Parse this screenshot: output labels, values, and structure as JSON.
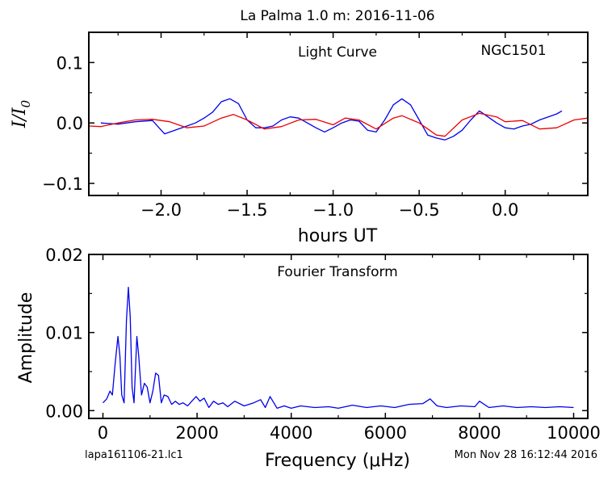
{
  "figure": {
    "title": "La Palma 1.0 m:  2016-11-06",
    "footer_left": "lapa161106-21.lc1",
    "footer_right": "Mon Nov 28 16:12:44 2016"
  },
  "colors": {
    "data": "#0000ee",
    "model": "#ee0000",
    "axes": "#000000"
  },
  "chart_data": [
    {
      "type": "line",
      "annotation": "Light Curve",
      "target": "NGC1501",
      "xlabel": "hours UT",
      "ylabel_main": "I/I",
      "ylabel_sub": "0",
      "xlim": [
        -2.42,
        0.48
      ],
      "ylim": [
        -0.12,
        0.15
      ],
      "xticks": [
        "−2.0",
        "−1.5",
        "−1.0",
        "−0.5",
        "0.0"
      ],
      "xtick_values": [
        -2.0,
        -1.5,
        -1.0,
        -0.5,
        0.0
      ],
      "yticks": [
        "0.1",
        "0.0",
        "−0.1"
      ],
      "ytick_values": [
        0.1,
        0.0,
        -0.1
      ],
      "series": [
        {
          "role": "data",
          "x": [
            -2.35,
            -2.25,
            -2.15,
            -2.05,
            -1.98,
            -1.9,
            -1.85,
            -1.8,
            -1.75,
            -1.7,
            -1.65,
            -1.6,
            -1.55,
            -1.5,
            -1.45,
            -1.4,
            -1.35,
            -1.3,
            -1.25,
            -1.2,
            -1.15,
            -1.1,
            -1.05,
            -1.0,
            -0.95,
            -0.9,
            -0.85,
            -0.8,
            -0.75,
            -0.7,
            -0.65,
            -0.6,
            -0.55,
            -0.5,
            -0.45,
            -0.4,
            -0.35,
            -0.3,
            -0.25,
            -0.2,
            -0.15,
            -0.1,
            -0.05,
            0.0,
            0.05,
            0.1,
            0.15,
            0.2,
            0.25,
            0.3,
            0.33
          ],
          "y": [
            0.0,
            -0.002,
            0.002,
            0.004,
            -0.018,
            -0.01,
            -0.005,
            0.0,
            0.008,
            0.018,
            0.035,
            0.04,
            0.032,
            0.005,
            -0.008,
            -0.008,
            -0.005,
            0.005,
            0.01,
            0.008,
            0.0,
            -0.008,
            -0.015,
            -0.008,
            0.0,
            0.005,
            0.003,
            -0.012,
            -0.015,
            0.005,
            0.03,
            0.04,
            0.03,
            0.005,
            -0.02,
            -0.025,
            -0.028,
            -0.022,
            -0.012,
            0.005,
            0.02,
            0.01,
            0.0,
            -0.008,
            -0.01,
            -0.005,
            -0.002,
            0.005,
            0.01,
            0.015,
            0.02
          ]
        },
        {
          "role": "model",
          "x": [
            -2.42,
            -2.35,
            -2.25,
            -2.15,
            -2.05,
            -1.95,
            -1.85,
            -1.75,
            -1.65,
            -1.58,
            -1.5,
            -1.4,
            -1.3,
            -1.2,
            -1.1,
            -1.0,
            -0.93,
            -0.85,
            -0.75,
            -0.65,
            -0.6,
            -0.5,
            -0.4,
            -0.35,
            -0.25,
            -0.15,
            -0.05,
            0.0,
            0.1,
            0.2,
            0.3,
            0.4,
            0.48
          ],
          "y": [
            -0.005,
            -0.006,
            0.0,
            0.005,
            0.006,
            0.002,
            -0.008,
            -0.005,
            0.008,
            0.014,
            0.005,
            -0.01,
            -0.006,
            0.005,
            0.006,
            -0.003,
            0.008,
            0.005,
            -0.01,
            0.008,
            0.012,
            0.0,
            -0.02,
            -0.022,
            0.005,
            0.016,
            0.01,
            0.002,
            0.004,
            -0.01,
            -0.008,
            0.005,
            0.008
          ]
        }
      ]
    },
    {
      "type": "line",
      "annotation": "Fourier Transform",
      "xlabel": "Frequency (μHz)",
      "ylabel": "Amplitude",
      "xlim": [
        -300,
        10300
      ],
      "ylim": [
        -0.001,
        0.02
      ],
      "xticks": [
        "0",
        "2000",
        "4000",
        "6000",
        "8000",
        "10000"
      ],
      "xtick_values": [
        0,
        2000,
        4000,
        6000,
        8000,
        10000
      ],
      "yticks": [
        "0.02",
        "0.01",
        "0.00"
      ],
      "ytick_values": [
        0.02,
        0.01,
        0.0
      ],
      "series": [
        {
          "role": "amplitude",
          "x": [
            0,
            80,
            150,
            200,
            260,
            320,
            360,
            400,
            450,
            500,
            540,
            580,
            620,
            660,
            720,
            760,
            820,
            880,
            940,
            1000,
            1060,
            1120,
            1180,
            1240,
            1300,
            1380,
            1460,
            1540,
            1620,
            1700,
            1800,
            1900,
            1980,
            2060,
            2150,
            2250,
            2350,
            2450,
            2550,
            2650,
            2800,
            3000,
            3200,
            3350,
            3450,
            3550,
            3700,
            3850,
            4000,
            4200,
            4500,
            4800,
            5000,
            5300,
            5600,
            5900,
            6200,
            6500,
            6800,
            6950,
            7100,
            7300,
            7600,
            7900,
            8000,
            8200,
            8500,
            8800,
            9100,
            9400,
            9700,
            10000
          ],
          "y": [
            0.001,
            0.0015,
            0.0025,
            0.002,
            0.006,
            0.0095,
            0.007,
            0.002,
            0.001,
            0.0115,
            0.0158,
            0.012,
            0.003,
            0.001,
            0.0095,
            0.007,
            0.002,
            0.0035,
            0.003,
            0.001,
            0.0025,
            0.0048,
            0.0045,
            0.001,
            0.002,
            0.0018,
            0.0008,
            0.0012,
            0.0008,
            0.001,
            0.0006,
            0.0013,
            0.0018,
            0.0012,
            0.0016,
            0.0004,
            0.0012,
            0.0008,
            0.001,
            0.0005,
            0.0012,
            0.0006,
            0.001,
            0.0014,
            0.0004,
            0.0018,
            0.0003,
            0.0006,
            0.0003,
            0.0006,
            0.0004,
            0.0005,
            0.0003,
            0.0007,
            0.0004,
            0.0006,
            0.0004,
            0.0008,
            0.0009,
            0.0015,
            0.0006,
            0.0004,
            0.0006,
            0.0005,
            0.0012,
            0.0004,
            0.0006,
            0.0004,
            0.0005,
            0.0004,
            0.0005,
            0.0004
          ]
        }
      ]
    }
  ]
}
